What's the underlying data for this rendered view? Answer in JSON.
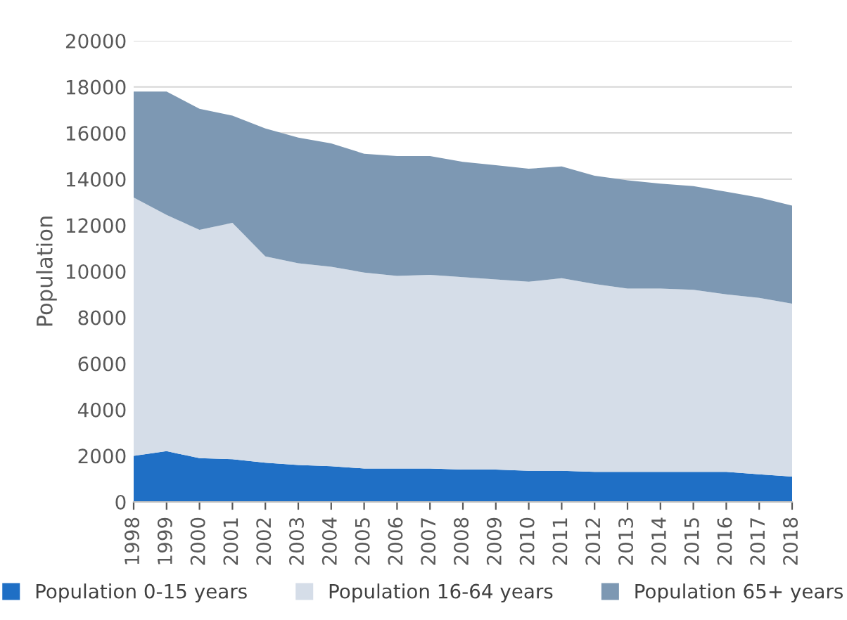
{
  "chart_data": {
    "type": "area",
    "stacked": true,
    "ylabel": "Population",
    "categories": [
      "1998",
      "1999",
      "2000",
      "2001",
      "2002",
      "2003",
      "2004",
      "2005",
      "2006",
      "2007",
      "2008",
      "2009",
      "2010",
      "2011",
      "2012",
      "2013",
      "2014",
      "2015",
      "2016",
      "2017",
      "2018"
    ],
    "series": [
      {
        "name": "Population 0-15 years",
        "color": "#1f6fc5",
        "values": [
          2000,
          2200,
          1900,
          1850,
          1700,
          1600,
          1550,
          1450,
          1450,
          1450,
          1400,
          1400,
          1350,
          1350,
          1300,
          1300,
          1300,
          1300,
          1300,
          1200,
          1100
        ]
      },
      {
        "name": "Population 16-64 years",
        "color": "#d5dde8",
        "values": [
          11200,
          10250,
          9900,
          10250,
          8950,
          8750,
          8650,
          8500,
          8350,
          8400,
          8350,
          8250,
          8200,
          8350,
          8150,
          7950,
          7950,
          7900,
          7700,
          7650,
          7500
        ]
      },
      {
        "name": "Population 65+ years",
        "color": "#7d98b3",
        "values": [
          4600,
          5350,
          5250,
          4650,
          5550,
          5450,
          5350,
          5150,
          5200,
          5150,
          5000,
          4950,
          4900,
          4850,
          4700,
          4700,
          4550,
          4500,
          4450,
          4350,
          4250
        ]
      }
    ],
    "ylim": [
      0,
      20000
    ],
    "yticks": [
      0,
      2000,
      4000,
      6000,
      8000,
      10000,
      12000,
      14000,
      16000,
      18000,
      20000
    ],
    "grid": "y",
    "legend": "bottom"
  }
}
